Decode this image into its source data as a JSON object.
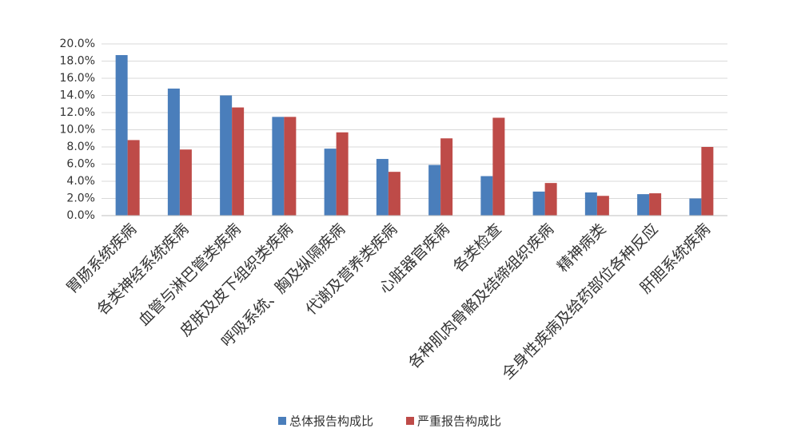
{
  "chart_data": {
    "type": "bar",
    "categories": [
      "胃肠系统疾病",
      "各类神经系统疾病",
      "血管与淋巴管类疾病",
      "皮肤及皮下组织类疾病",
      "呼吸系统、胸及纵隔疾病",
      "代谢及营养类疾病",
      "心脏器官疾病",
      "各类检查",
      "各种肌肉骨骼及结缔组织疾病",
      "精神病类",
      "全身性疾病及给药部位各种反应",
      "肝胆系统疾病"
    ],
    "series": [
      {
        "name": "总体报告构成比",
        "color": "#4a7ebb",
        "values": [
          18.7,
          14.8,
          14.0,
          11.5,
          7.8,
          6.6,
          5.9,
          4.6,
          2.8,
          2.7,
          2.5,
          2.0
        ]
      },
      {
        "name": "严重报告构成比",
        "color": "#be4b48",
        "values": [
          8.8,
          7.7,
          12.6,
          11.5,
          9.7,
          5.1,
          9.0,
          11.4,
          3.8,
          2.3,
          2.6,
          8.0
        ]
      }
    ],
    "ylim": [
      0,
      20
    ],
    "yticks": [
      {
        "value": 0,
        "label": "0.0%"
      },
      {
        "value": 2,
        "label": "2.0%"
      },
      {
        "value": 4,
        "label": "4.0%"
      },
      {
        "value": 6,
        "label": "6.0%"
      },
      {
        "value": 8,
        "label": "8.0%"
      },
      {
        "value": 10,
        "label": "10.0%"
      },
      {
        "value": 12,
        "label": "12.0%"
      },
      {
        "value": 14,
        "label": "14.0%"
      },
      {
        "value": 16,
        "label": "16.0%"
      },
      {
        "value": 18,
        "label": "18.0%"
      },
      {
        "value": 20,
        "label": "20.0%"
      }
    ],
    "grid": true,
    "legend": "bottom"
  }
}
